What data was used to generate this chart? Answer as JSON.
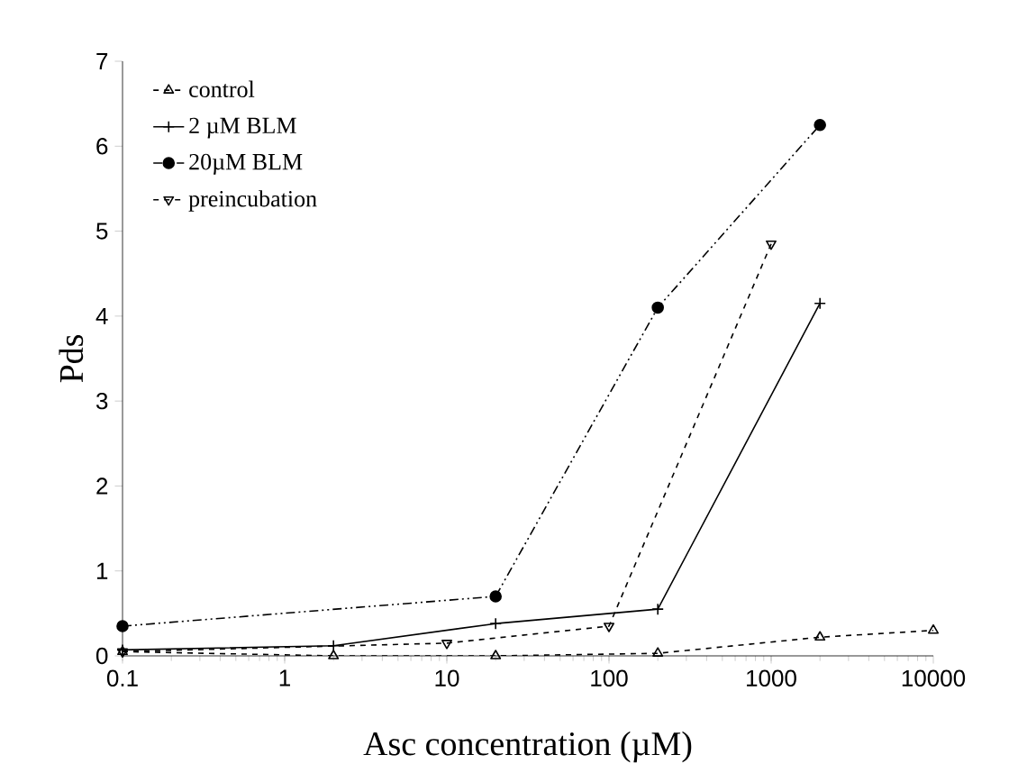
{
  "chart_data": {
    "type": "line",
    "xlabel": "Asc concentration (µM)",
    "ylabel": "Pds",
    "log": "x",
    "xlim": [
      0.1,
      10000
    ],
    "ylim": [
      0,
      7
    ],
    "xticks": [
      0.1,
      1,
      10,
      100,
      1000,
      10000
    ],
    "yticks": [
      0,
      1,
      2,
      3,
      4,
      5,
      6,
      7
    ],
    "grid": false,
    "legend": "top left",
    "series": [
      {
        "name": "control",
        "color": "#000000",
        "line_style": "dashed",
        "marker": "triangle",
        "x": [
          0.1,
          2,
          20,
          200,
          2000,
          10000
        ],
        "values": [
          0.05,
          0.0,
          0.0,
          0.03,
          0.22,
          0.3
        ]
      },
      {
        "name": "2 µM BLM",
        "color": "#000000",
        "line_style": "solid",
        "marker": "cross",
        "x": [
          0.1,
          2,
          20,
          200,
          2000
        ],
        "values": [
          0.07,
          0.12,
          0.38,
          0.55,
          4.15
        ]
      },
      {
        "name": "20µM BLM",
        "color": "#000000",
        "line_style": "dashdot",
        "marker": "circle",
        "x": [
          0.1,
          20,
          200,
          2000
        ],
        "values": [
          0.35,
          0.7,
          4.1,
          6.25
        ]
      },
      {
        "name": "preincubation",
        "color": "#000000",
        "line_style": "dashed",
        "marker": "triangle-down",
        "x": [
          0.1,
          10,
          100,
          1000
        ],
        "values": [
          0.05,
          0.15,
          0.35,
          4.85
        ]
      }
    ]
  }
}
